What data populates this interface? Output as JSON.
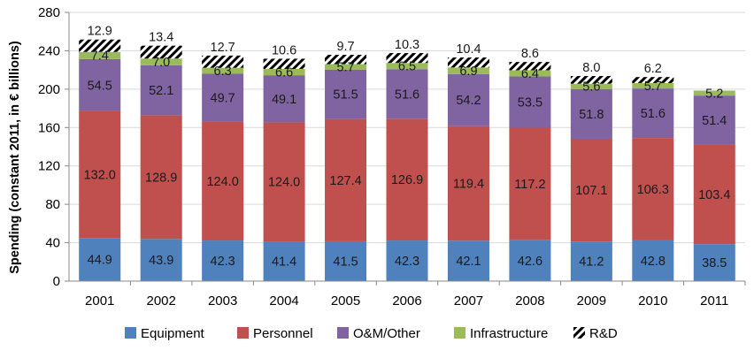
{
  "chart_data": {
    "type": "bar",
    "stacked": true,
    "ylabel": "Spending (constant 2011, in € billions)",
    "ylim": [
      0,
      280
    ],
    "yticks": [
      0,
      40,
      80,
      120,
      160,
      200,
      240,
      280
    ],
    "categories": [
      "2001",
      "2002",
      "2003",
      "2004",
      "2005",
      "2006",
      "2007",
      "2008",
      "2009",
      "2010",
      "2011"
    ],
    "legend_position": "bottom",
    "series": [
      {
        "name": "Equipment",
        "color": "#4f81bd",
        "pattern": "solid",
        "values": [
          44.9,
          43.9,
          42.3,
          41.4,
          41.5,
          42.3,
          42.1,
          42.6,
          41.2,
          42.8,
          38.5
        ]
      },
      {
        "name": "Personnel",
        "color": "#c0504d",
        "pattern": "solid",
        "values": [
          132.0,
          128.9,
          124.0,
          124.0,
          127.4,
          126.9,
          119.4,
          117.2,
          107.1,
          106.3,
          103.4
        ]
      },
      {
        "name": "O&M/Other",
        "color": "#8064a2",
        "pattern": "solid",
        "values": [
          54.5,
          52.1,
          49.7,
          49.1,
          51.5,
          51.6,
          54.2,
          53.5,
          51.8,
          51.6,
          51.4
        ]
      },
      {
        "name": "Infrastructure",
        "color": "#9bbb59",
        "pattern": "solid",
        "values": [
          7.4,
          7.0,
          6.3,
          6.6,
          5.7,
          6.5,
          6.9,
          6.4,
          5.6,
          5.7,
          5.2
        ]
      },
      {
        "name": "R&D",
        "color": "#000000",
        "pattern": "diagonal-hatch",
        "values": [
          12.9,
          13.4,
          12.7,
          10.6,
          9.7,
          10.3,
          10.4,
          8.6,
          8.0,
          6.2,
          0
        ]
      }
    ],
    "data_labels": [
      [
        "44.9",
        "43.9",
        "42.3",
        "41.4",
        "41.5",
        "42.3",
        "42.1",
        "42.6",
        "41.2",
        "42.8",
        "38.5"
      ],
      [
        "132.0",
        "128.9",
        "124.0",
        "124.0",
        "127.4",
        "126.9",
        "119.4",
        "117.2",
        "107.1",
        "106.3",
        "103.4"
      ],
      [
        "54.5",
        "52.1",
        "49.7",
        "49.1",
        "51.5",
        "51.6",
        "54.2",
        "53.5",
        "51.8",
        "51.6",
        "51.4"
      ],
      [
        "7.4",
        "7.0",
        "6.3",
        "6.6",
        "5.7",
        "6.5",
        "6.9",
        "6.4",
        "5.6",
        "5.7",
        "5.2"
      ],
      [
        "12.9",
        "13.4",
        "12.7",
        "10.6",
        "9.7",
        "10.3",
        "10.4",
        "8.6",
        "8.0",
        "6.2",
        ""
      ]
    ]
  }
}
